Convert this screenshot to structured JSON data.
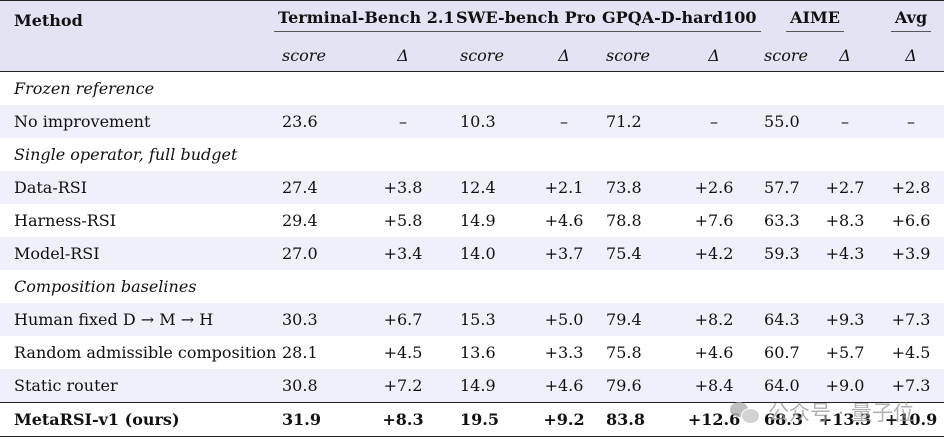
{
  "header": {
    "method": "Method",
    "groups": [
      "Terminal-Bench 2.1",
      "SWE-bench Pro",
      "GPQA-D-hard100",
      "AIME",
      "Avg"
    ],
    "sub": [
      "score",
      "Δ",
      "score",
      "Δ",
      "score",
      "Δ",
      "score",
      "Δ",
      "Δ"
    ]
  },
  "sections": [
    {
      "title": "Frozen reference",
      "rows": [
        {
          "label": "No improvement",
          "vals": [
            "23.6",
            "–",
            "10.3",
            "–",
            "71.2",
            "–",
            "55.0",
            "–",
            "–"
          ]
        }
      ]
    },
    {
      "title": "Single operator, full budget",
      "rows": [
        {
          "label": "Data-RSI",
          "vals": [
            "27.4",
            "+3.8",
            "12.4",
            "+2.1",
            "73.8",
            "+2.6",
            "57.7",
            "+2.7",
            "+2.8"
          ]
        },
        {
          "label": "Harness-RSI",
          "vals": [
            "29.4",
            "+5.8",
            "14.9",
            "+4.6",
            "78.8",
            "+7.6",
            "63.3",
            "+8.3",
            "+6.6"
          ]
        },
        {
          "label": "Model-RSI",
          "vals": [
            "27.0",
            "+3.4",
            "14.0",
            "+3.7",
            "75.4",
            "+4.2",
            "59.3",
            "+4.3",
            "+3.9"
          ]
        }
      ]
    },
    {
      "title": "Composition baselines",
      "rows": [
        {
          "label": "Human fixed D → M → H",
          "vals": [
            "30.3",
            "+6.7",
            "15.3",
            "+5.0",
            "79.4",
            "+8.2",
            "64.3",
            "+9.3",
            "+7.3"
          ]
        },
        {
          "label": "Random admissible composition",
          "vals": [
            "28.1",
            "+4.5",
            "13.6",
            "+3.3",
            "75.8",
            "+4.6",
            "60.7",
            "+5.7",
            "+4.5"
          ]
        },
        {
          "label": "Static router",
          "vals": [
            "30.8",
            "+7.2",
            "14.9",
            "+4.6",
            "79.6",
            "+8.4",
            "64.0",
            "+9.0",
            "+7.3"
          ]
        }
      ]
    }
  ],
  "final": {
    "label": "MetaRSI-v1 (ours)",
    "vals": [
      "31.9",
      "+8.3",
      "19.5",
      "+9.2",
      "83.8",
      "+12.6",
      "68.3",
      "+13.3",
      "+10.9"
    ]
  },
  "watermark": "公众号 · 量子位"
}
